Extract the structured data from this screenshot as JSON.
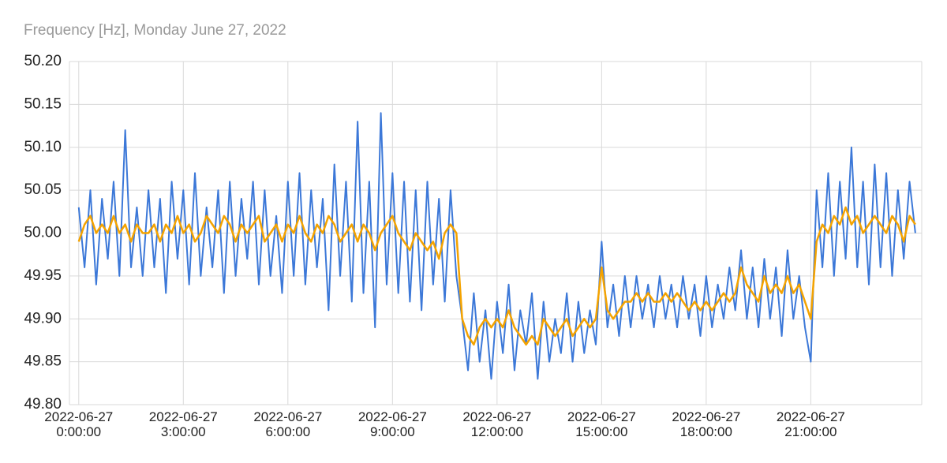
{
  "chart_data": {
    "type": "line",
    "title": "Frequency [Hz], Monday June 27, 2022",
    "x": [
      0,
      10,
      20,
      30,
      40,
      50,
      60,
      70,
      80,
      90,
      100,
      110,
      120,
      130,
      140,
      150,
      160,
      170,
      180,
      190,
      200,
      210,
      220,
      230,
      240,
      250,
      260,
      270,
      280,
      290,
      300,
      310,
      320,
      330,
      340,
      350,
      360,
      370,
      380,
      390,
      400,
      410,
      420,
      430,
      440,
      450,
      460,
      470,
      480,
      490,
      500,
      510,
      520,
      530,
      540,
      550,
      560,
      570,
      580,
      590,
      600,
      610,
      620,
      630,
      640,
      650,
      660,
      670,
      680,
      690,
      700,
      710,
      720,
      730,
      740,
      750,
      760,
      770,
      780,
      790,
      800,
      810,
      820,
      830,
      840,
      850,
      860,
      870,
      880,
      890,
      900,
      910,
      920,
      930,
      940,
      950,
      960,
      970,
      980,
      990,
      1000,
      1010,
      1020,
      1030,
      1040,
      1050,
      1060,
      1070,
      1080,
      1090,
      1100,
      1110,
      1120,
      1130,
      1140,
      1150,
      1160,
      1170,
      1180,
      1190,
      1200,
      1210,
      1220,
      1230,
      1240,
      1250,
      1260,
      1270,
      1280,
      1290,
      1300,
      1310,
      1320,
      1330,
      1340,
      1350,
      1360,
      1370,
      1380,
      1390,
      1400,
      1410,
      1420,
      1430,
      1440
    ],
    "series": [
      {
        "color": "#3c78d8",
        "values": [
          50.03,
          49.96,
          50.05,
          49.94,
          50.04,
          49.97,
          50.06,
          49.95,
          50.12,
          49.96,
          50.03,
          49.95,
          50.05,
          49.96,
          50.04,
          49.93,
          50.06,
          49.97,
          50.05,
          49.94,
          50.07,
          49.95,
          50.03,
          49.96,
          50.05,
          49.93,
          50.06,
          49.95,
          50.04,
          49.97,
          50.06,
          49.94,
          50.05,
          49.95,
          50.02,
          49.93,
          50.06,
          49.95,
          50.07,
          49.94,
          50.05,
          49.96,
          50.04,
          49.91,
          50.08,
          49.95,
          50.06,
          49.92,
          50.13,
          49.93,
          50.06,
          49.89,
          50.14,
          49.94,
          50.07,
          49.93,
          50.06,
          49.92,
          50.05,
          49.91,
          50.06,
          49.94,
          50.04,
          49.92,
          50.05,
          49.95,
          49.9,
          49.84,
          49.93,
          49.85,
          49.91,
          49.83,
          49.92,
          49.86,
          49.94,
          49.84,
          49.91,
          49.87,
          49.93,
          49.83,
          49.92,
          49.85,
          49.9,
          49.86,
          49.93,
          49.85,
          49.92,
          49.86,
          49.91,
          49.87,
          49.99,
          49.89,
          49.94,
          49.88,
          49.95,
          49.89,
          49.95,
          49.9,
          49.94,
          49.89,
          49.95,
          49.9,
          49.94,
          49.89,
          49.95,
          49.9,
          49.94,
          49.88,
          49.95,
          49.89,
          49.94,
          49.9,
          49.96,
          49.91,
          49.98,
          49.9,
          49.96,
          49.89,
          49.97,
          49.9,
          49.96,
          49.88,
          49.98,
          49.9,
          49.95,
          49.89,
          49.85,
          50.05,
          49.96,
          50.07,
          49.95,
          50.06,
          49.97,
          50.1,
          49.96,
          50.06,
          49.94,
          50.08,
          49.96,
          50.07,
          49.95,
          50.05,
          49.97,
          50.06,
          50.0
        ]
      },
      {
        "color": "#f4a300",
        "values": [
          49.99,
          50.01,
          50.02,
          50.0,
          50.01,
          50.0,
          50.02,
          50.0,
          50.01,
          49.99,
          50.01,
          50.0,
          50.0,
          50.01,
          49.99,
          50.01,
          50.0,
          50.02,
          50.0,
          50.01,
          49.99,
          50.0,
          50.02,
          50.01,
          50.0,
          50.02,
          50.01,
          49.99,
          50.01,
          50.0,
          50.01,
          50.02,
          49.99,
          50.0,
          50.01,
          49.99,
          50.01,
          50.0,
          50.02,
          50.0,
          49.99,
          50.01,
          50.0,
          50.02,
          50.01,
          49.99,
          50.0,
          50.01,
          49.99,
          50.01,
          50.0,
          49.98,
          50.0,
          50.01,
          50.02,
          50.0,
          49.99,
          49.98,
          50.0,
          49.99,
          49.98,
          49.99,
          49.97,
          50.0,
          50.01,
          50.0,
          49.9,
          49.88,
          49.87,
          49.89,
          49.9,
          49.89,
          49.9,
          49.89,
          49.91,
          49.89,
          49.88,
          49.87,
          49.88,
          49.87,
          49.9,
          49.89,
          49.88,
          49.89,
          49.9,
          49.88,
          49.89,
          49.9,
          49.89,
          49.9,
          49.96,
          49.91,
          49.9,
          49.91,
          49.92,
          49.92,
          49.93,
          49.92,
          49.93,
          49.92,
          49.92,
          49.93,
          49.92,
          49.93,
          49.92,
          49.91,
          49.92,
          49.91,
          49.92,
          49.91,
          49.92,
          49.93,
          49.92,
          49.93,
          49.96,
          49.94,
          49.93,
          49.92,
          49.95,
          49.93,
          49.94,
          49.93,
          49.95,
          49.93,
          49.94,
          49.92,
          49.9,
          49.99,
          50.01,
          50.0,
          50.02,
          50.01,
          50.03,
          50.01,
          50.02,
          50.0,
          50.01,
          50.02,
          50.01,
          50.0,
          50.02,
          50.01,
          49.99,
          50.02,
          50.01
        ]
      }
    ],
    "xlim": [
      -16,
      1451
    ],
    "xticks": [
      {
        "value": 0,
        "label": "2022-06-27 0:00:00"
      },
      {
        "value": 180,
        "label": "2022-06-27 3:00:00"
      },
      {
        "value": 360,
        "label": "2022-06-27 6:00:00"
      },
      {
        "value": 540,
        "label": "2022-06-27 9:00:00"
      },
      {
        "value": 720,
        "label": "2022-06-27 12:00:00"
      },
      {
        "value": 900,
        "label": "2022-06-27 15:00:00"
      },
      {
        "value": 1080,
        "label": "2022-06-27 18:00:00"
      },
      {
        "value": 1260,
        "label": "2022-06-27 21:00:00"
      }
    ],
    "ylim": [
      49.8,
      50.2
    ],
    "yticks": [
      {
        "value": 49.8,
        "label": "49.80"
      },
      {
        "value": 49.85,
        "label": "49.85"
      },
      {
        "value": 49.9,
        "label": "49.90"
      },
      {
        "value": 49.95,
        "label": "49.95"
      },
      {
        "value": 50,
        "label": "50.00"
      },
      {
        "value": 50.05,
        "label": "50.05"
      },
      {
        "value": 50.1,
        "label": "50.10"
      },
      {
        "value": 50.15,
        "label": "50.15"
      },
      {
        "value": 50.2,
        "label": "50.20"
      }
    ],
    "grid": true
  }
}
